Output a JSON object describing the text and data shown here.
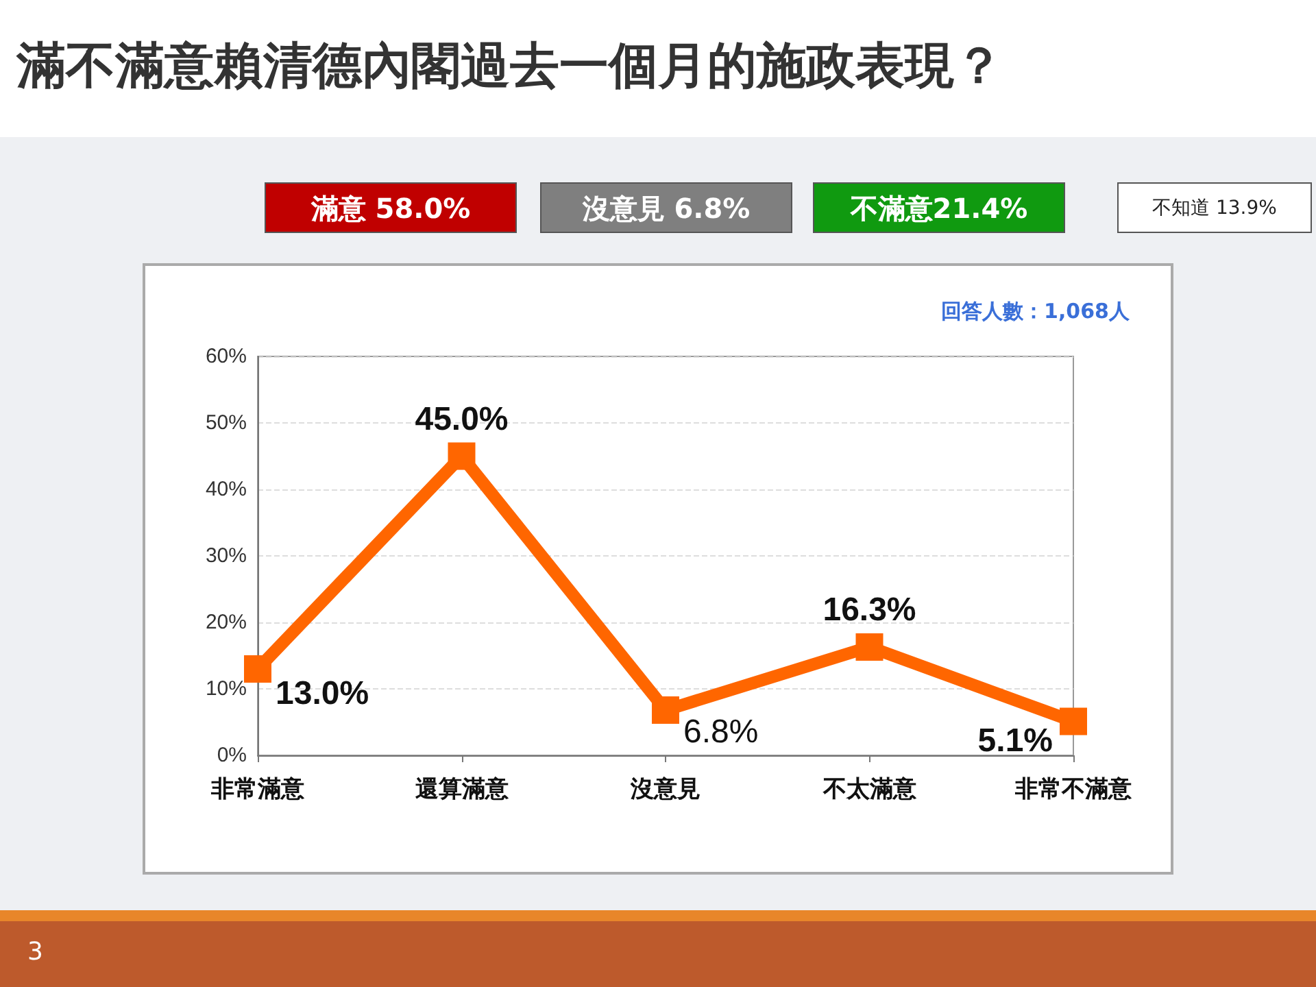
{
  "chart_data": {
    "type": "line",
    "title": "滿不滿意賴清德內閣過去一個月的施政表現？",
    "categories": [
      "非常滿意",
      "還算滿意",
      "沒意見",
      "不太滿意",
      "非常不滿意"
    ],
    "series": [
      {
        "color": "#ff6600",
        "values": [
          13.0,
          45.0,
          6.8,
          16.3,
          5.1
        ],
        "value_labels": [
          "13.0%",
          "45.0%",
          "6.8%",
          "16.3%",
          "5.1%"
        ]
      }
    ],
    "ylim": [
      0,
      60
    ],
    "yticks": [
      {
        "value": 0,
        "label": "0%"
      },
      {
        "value": 10,
        "label": "10%"
      },
      {
        "value": 20,
        "label": "20%"
      },
      {
        "value": 30,
        "label": "30%"
      },
      {
        "value": 40,
        "label": "40%"
      },
      {
        "value": 50,
        "label": "50%"
      },
      {
        "value": 60,
        "label": "60%"
      }
    ],
    "grid": "y",
    "marker": "square",
    "line_style": "solid",
    "annotations": [
      "滿意 58.0%",
      "沒意見 6.8%",
      "不滿意21.4%",
      "不知道 13.9%",
      "回答人數：1,068人",
      "3"
    ]
  }
}
